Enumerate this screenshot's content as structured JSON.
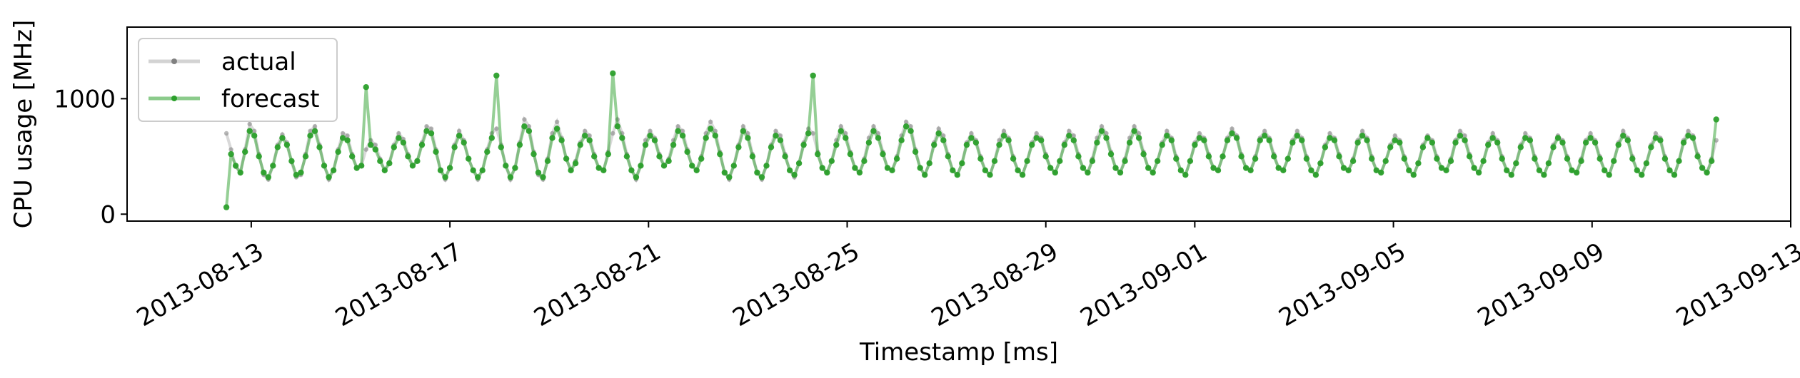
{
  "chart_data": {
    "type": "line",
    "title": "",
    "xlabel": "Timestamp [ms]",
    "ylabel": "CPU usage [MHz]",
    "x_start": "2013-08-12T12:00",
    "x_end": "2013-09-11T12:00",
    "xlim": [
      "2013-08-10T12:00",
      "2013-09-13T00:00"
    ],
    "ylim": [
      -60,
      1620
    ],
    "x_ticks": [
      "2013-08-13",
      "2013-08-17",
      "2013-08-21",
      "2013-08-25",
      "2013-08-29",
      "2013-09-01",
      "2013-09-05",
      "2013-09-09",
      "2013-09-13"
    ],
    "y_ticks": [
      "0",
      "1000"
    ],
    "y_tick_values": [
      0,
      1000
    ],
    "grid": false,
    "legend_position": "upper-left",
    "series": [
      {
        "name": "actual",
        "color": "#808080",
        "values": [
          700,
          560,
          410,
          360,
          560,
          780,
          720,
          520,
          340,
          300,
          420,
          600,
          690,
          620,
          450,
          320,
          340,
          520,
          720,
          760,
          600,
          420,
          300,
          380,
          560,
          700,
          680,
          520,
          400,
          420,
          560,
          640,
          600,
          480,
          380,
          450,
          600,
          700,
          650,
          520,
          420,
          460,
          620,
          760,
          740,
          560,
          380,
          300,
          400,
          600,
          720,
          640,
          480,
          380,
          300,
          380,
          560,
          700,
          740,
          600,
          420,
          300,
          400,
          620,
          820,
          760,
          540,
          340,
          300,
          480,
          700,
          800,
          660,
          480,
          380,
          460,
          620,
          720,
          680,
          520,
          400,
          380,
          540,
          700,
          820,
          700,
          520,
          380,
          300,
          420,
          640,
          720,
          660,
          520,
          420,
          480,
          640,
          760,
          720,
          560,
          420,
          380,
          500,
          700,
          800,
          720,
          540,
          360,
          300,
          420,
          600,
          760,
          700,
          520,
          360,
          300,
          420,
          600,
          720,
          680,
          520,
          380,
          320,
          440,
          620,
          740,
          700,
          540,
          400,
          360,
          460,
          640,
          760,
          700,
          540,
          400,
          360,
          480,
          660,
          760,
          700,
          540,
          400,
          380,
          500,
          680,
          800,
          760,
          560,
          400,
          340,
          440,
          620,
          740,
          680,
          520,
          380,
          340,
          440,
          620,
          700,
          640,
          500,
          380,
          340,
          460,
          640,
          720,
          660,
          500,
          380,
          340,
          460,
          620,
          700,
          660,
          520,
          400,
          360,
          460,
          620,
          720,
          680,
          520,
          400,
          360,
          480,
          660,
          760,
          700,
          540,
          400,
          360,
          480,
          660,
          760,
          700,
          540,
          400,
          360,
          460,
          620,
          720,
          660,
          500,
          380,
          340,
          460,
          620,
          700,
          660,
          520,
          400,
          380,
          500,
          660,
          740,
          680,
          520,
          400,
          380,
          500,
          660,
          720,
          660,
          520,
          400,
          380,
          480,
          640,
          720,
          660,
          500,
          380,
          340,
          440,
          600,
          700,
          660,
          520,
          400,
          380,
          480,
          640,
          720,
          660,
          500,
          380,
          360,
          460,
          600,
          680,
          640,
          500,
          380,
          340,
          440,
          600,
          680,
          640,
          500,
          400,
          380,
          480,
          640,
          720,
          680,
          520,
          400,
          360,
          460,
          620,
          700,
          640,
          500,
          380,
          340,
          440,
          600,
          700,
          660,
          500,
          380,
          340,
          440,
          600,
          680,
          640,
          500,
          380,
          360,
          480,
          640,
          700,
          640,
          500,
          380,
          340,
          460,
          620,
          720,
          660,
          500,
          380,
          340,
          440,
          600,
          700,
          660,
          500,
          380,
          340,
          460,
          640,
          720,
          680,
          520,
          400,
          360,
          480,
          640
        ]
      },
      {
        "name": "forecast",
        "color": "#2ca02c",
        "values": [
          60,
          520,
          420,
          360,
          540,
          720,
          680,
          500,
          360,
          320,
          420,
          580,
          660,
          600,
          460,
          340,
          360,
          500,
          680,
          720,
          580,
          420,
          320,
          380,
          540,
          660,
          640,
          500,
          400,
          420,
          1100,
          600,
          560,
          460,
          380,
          440,
          580,
          660,
          620,
          500,
          420,
          460,
          600,
          720,
          700,
          540,
          380,
          320,
          400,
          580,
          680,
          620,
          480,
          380,
          320,
          380,
          540,
          660,
          1200,
          580,
          420,
          320,
          400,
          600,
          760,
          720,
          520,
          360,
          320,
          460,
          660,
          740,
          640,
          480,
          380,
          440,
          600,
          680,
          640,
          500,
          400,
          380,
          520,
          1220,
          760,
          660,
          500,
          380,
          320,
          420,
          600,
          680,
          640,
          500,
          420,
          460,
          600,
          720,
          680,
          540,
          420,
          380,
          480,
          660,
          740,
          680,
          520,
          360,
          320,
          420,
          580,
          720,
          660,
          500,
          360,
          320,
          420,
          580,
          680,
          640,
          500,
          380,
          340,
          440,
          600,
          700,
          1200,
          520,
          400,
          360,
          460,
          600,
          720,
          660,
          520,
          400,
          360,
          460,
          620,
          720,
          660,
          520,
          400,
          380,
          480,
          640,
          760,
          720,
          540,
          400,
          340,
          440,
          600,
          700,
          640,
          500,
          380,
          340,
          440,
          600,
          660,
          620,
          480,
          380,
          340,
          460,
          600,
          680,
          640,
          480,
          380,
          340,
          460,
          600,
          660,
          640,
          500,
          400,
          360,
          460,
          600,
          680,
          640,
          500,
          400,
          360,
          460,
          620,
          720,
          660,
          520,
          400,
          360,
          460,
          620,
          720,
          660,
          520,
          400,
          360,
          460,
          600,
          680,
          640,
          480,
          380,
          340,
          460,
          600,
          660,
          640,
          500,
          400,
          380,
          500,
          640,
          700,
          660,
          500,
          400,
          380,
          480,
          640,
          680,
          640,
          500,
          400,
          380,
          480,
          620,
          680,
          640,
          480,
          380,
          340,
          440,
          580,
          660,
          640,
          500,
          400,
          380,
          460,
          620,
          680,
          640,
          480,
          380,
          360,
          460,
          580,
          640,
          620,
          480,
          380,
          340,
          440,
          580,
          660,
          620,
          480,
          400,
          380,
          460,
          620,
          680,
          640,
          500,
          400,
          360,
          460,
          600,
          660,
          620,
          480,
          380,
          340,
          440,
          580,
          660,
          640,
          480,
          380,
          340,
          440,
          580,
          660,
          620,
          480,
          380,
          360,
          460,
          620,
          660,
          620,
          480,
          380,
          340,
          460,
          600,
          680,
          640,
          480,
          380,
          340,
          440,
          580,
          660,
          640,
          480,
          380,
          340,
          460,
          620,
          680,
          660,
          500,
          400,
          360,
          460,
          820
        ]
      }
    ]
  }
}
